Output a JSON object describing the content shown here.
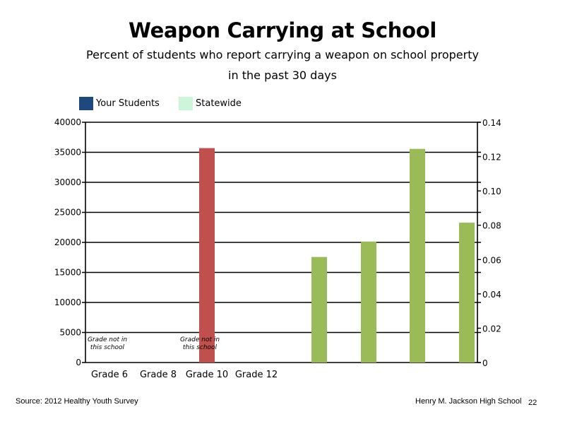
{
  "header": {
    "title": "Weapon Carrying at School",
    "subtitle_line1": "Percent of students who report carrying a weapon on school property",
    "subtitle_line2": "in the past 30 days"
  },
  "legend": [
    {
      "label": "Your Students",
      "color": "#1f497d"
    },
    {
      "label": "Statewide",
      "color": "#ccf5d9"
    }
  ],
  "chart_data": {
    "type": "bar",
    "categories": [
      "Grade 6",
      "Grade 8",
      "Grade 10",
      "Grade 12"
    ],
    "left_axis": {
      "ylim": [
        0,
        40000
      ],
      "ticks": [
        "0",
        "5000",
        "10000",
        "15000",
        "20000",
        "25000",
        "30000",
        "35000",
        "40000"
      ]
    },
    "right_axis": {
      "ylim": [
        0,
        0.14
      ],
      "ticks": [
        "0",
        "0.02",
        "0.04",
        "0.06",
        "0.08",
        "0.10",
        "0.12",
        "0.14"
      ]
    },
    "grid": true,
    "legend_position": "top-left",
    "red_bars": [
      {
        "category": "Grade 10",
        "value": 35700,
        "axis": "left",
        "color": "#c0504d"
      }
    ],
    "green_bars": {
      "axis": "right",
      "color": "#9bbb59",
      "values": [
        0.0615,
        0.0705,
        0.1245,
        0.0815
      ]
    },
    "annotations": [
      {
        "category": "Grade 6",
        "line1": "Grade not in",
        "line2": "this school"
      },
      {
        "category": "Grade 10",
        "line1": "Grade not in",
        "line2": "this school"
      }
    ]
  },
  "footer": {
    "source": "Source: 2012 Healthy Youth Survey",
    "school": "Henry M.  Jackson High School",
    "page": "22"
  }
}
